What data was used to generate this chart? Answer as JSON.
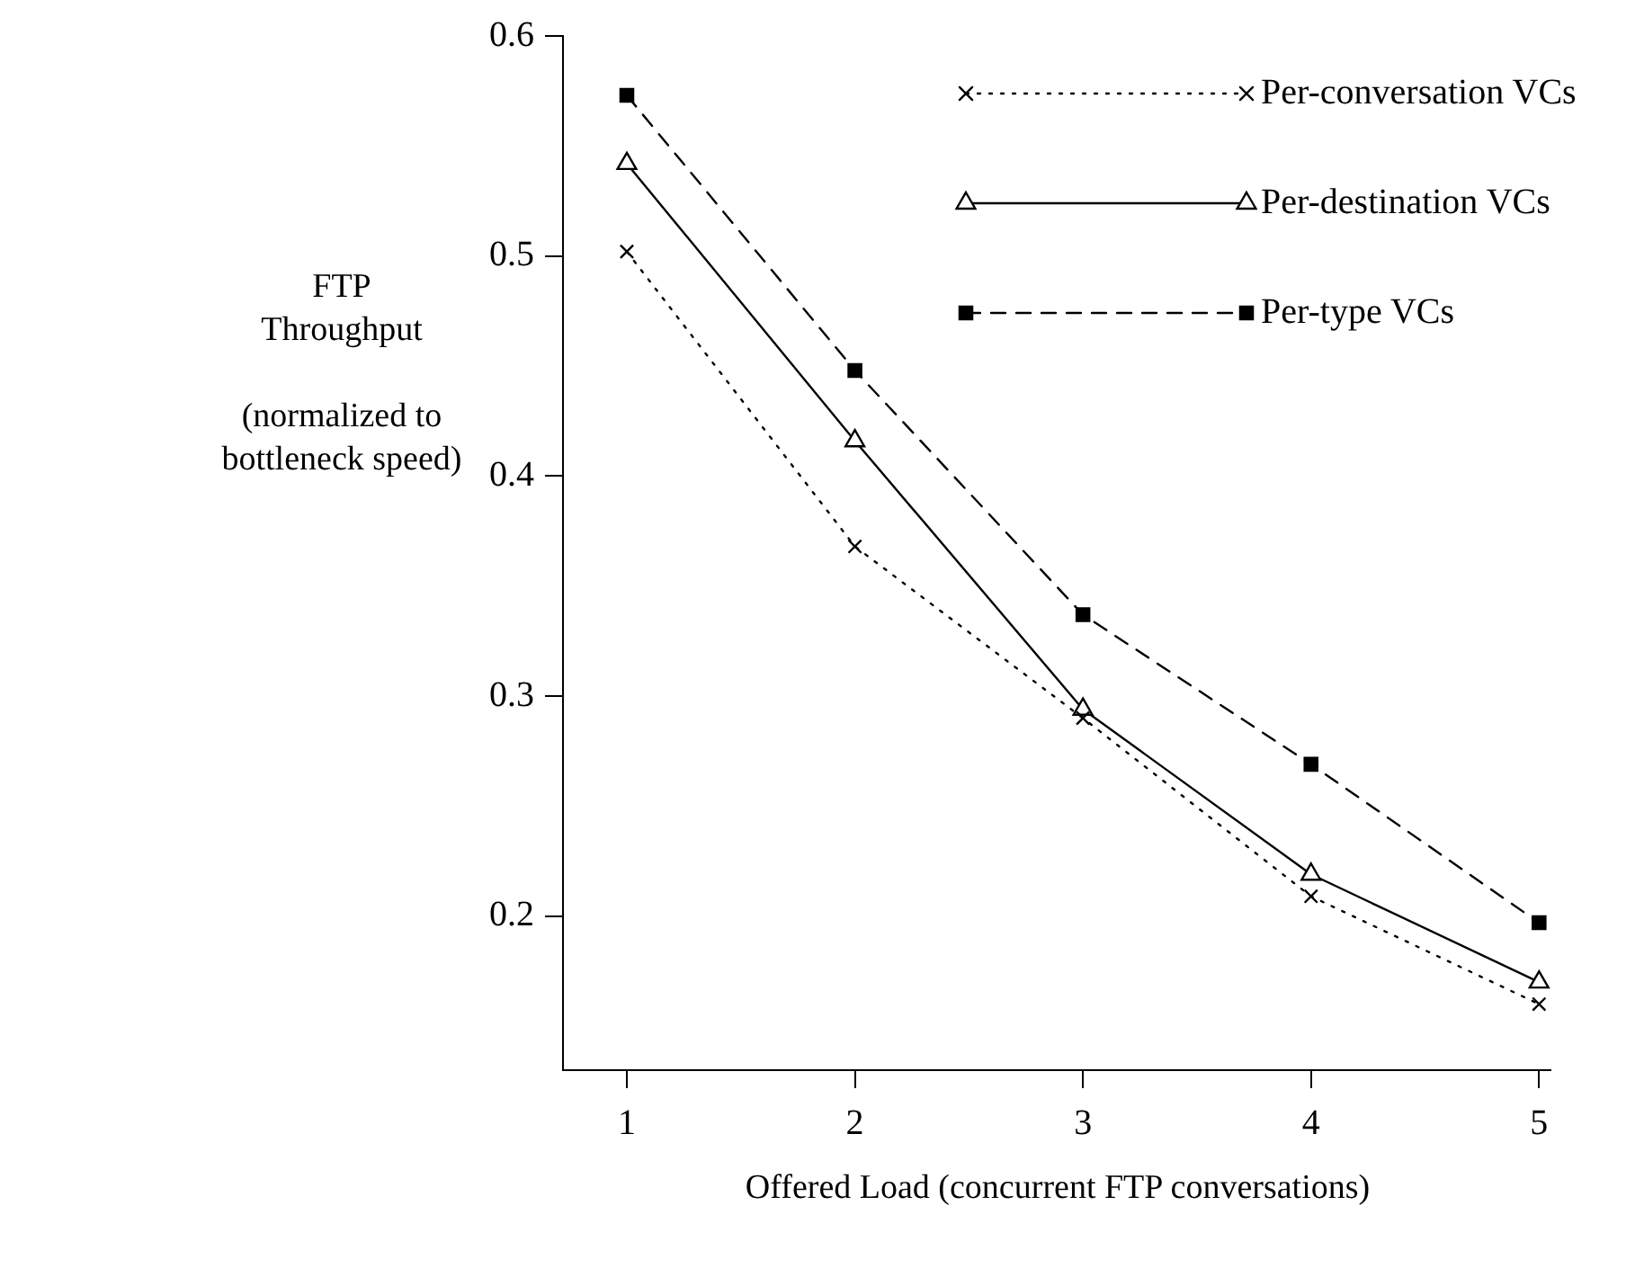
{
  "chart_data": {
    "type": "line",
    "xlabel": "Offered Load (concurrent FTP conversations)",
    "ylabel": "FTP\nThroughput\n\n(normalized to\nbottleneck speed)",
    "x": [
      1,
      2,
      3,
      4,
      5
    ],
    "xlim": [
      0.72,
      5.05
    ],
    "xticks": [
      1,
      2,
      3,
      4,
      5
    ],
    "ylim": [
      0.13,
      0.6
    ],
    "yticks": [
      0.2,
      0.3,
      0.4,
      0.5,
      0.6
    ],
    "legend": "top right",
    "series": [
      {
        "name": "Per-conversation VCs",
        "color": "#000000",
        "values": [
          0.502,
          0.368,
          0.29,
          0.209,
          0.16
        ],
        "line_style": "dotted",
        "marker": "cross"
      },
      {
        "name": "Per-destination VCs",
        "color": "#000000",
        "values": [
          0.542,
          0.416,
          0.294,
          0.219,
          0.17
        ],
        "line_style": "solid",
        "marker": "triangle"
      },
      {
        "name": "Per-type VCs",
        "color": "#000000",
        "values": [
          0.573,
          0.448,
          0.337,
          0.269,
          0.197
        ],
        "line_style": "dashed",
        "marker": "square"
      }
    ]
  }
}
